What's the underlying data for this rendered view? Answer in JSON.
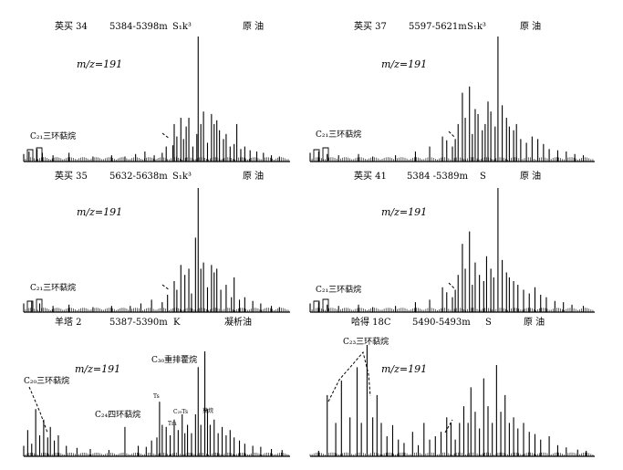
{
  "chart_data": [
    {
      "type": "line",
      "well": "英买 34",
      "depth": "5384-5398m",
      "formation": "S₁k³",
      "sample": "原 油",
      "mz": "m/z=191",
      "annotations": [
        {
          "label": "C₂₁三环萜烷"
        }
      ],
      "peaks": [
        [
          0.0,
          0.06
        ],
        [
          0.02,
          0.08
        ],
        [
          0.05,
          0.1
        ],
        [
          0.07,
          0.07
        ],
        [
          0.11,
          0.05
        ],
        [
          0.17,
          0.07
        ],
        [
          0.26,
          0.04
        ],
        [
          0.33,
          0.05
        ],
        [
          0.38,
          0.04
        ],
        [
          0.42,
          0.06
        ],
        [
          0.455,
          0.08
        ],
        [
          0.49,
          0.05
        ],
        [
          0.52,
          0.07
        ],
        [
          0.535,
          0.12
        ],
        [
          0.56,
          0.13
        ],
        [
          0.565,
          0.3
        ],
        [
          0.575,
          0.2
        ],
        [
          0.59,
          0.35
        ],
        [
          0.6,
          0.18
        ],
        [
          0.61,
          0.28
        ],
        [
          0.62,
          0.35
        ],
        [
          0.635,
          0.12
        ],
        [
          0.65,
          0.22
        ],
        [
          0.655,
          1.0
        ],
        [
          0.665,
          0.3
        ],
        [
          0.675,
          0.4
        ],
        [
          0.69,
          0.15
        ],
        [
          0.705,
          0.38
        ],
        [
          0.715,
          0.3
        ],
        [
          0.725,
          0.33
        ],
        [
          0.735,
          0.25
        ],
        [
          0.75,
          0.18
        ],
        [
          0.76,
          0.22
        ],
        [
          0.775,
          0.12
        ],
        [
          0.79,
          0.14
        ],
        [
          0.8,
          0.3
        ],
        [
          0.815,
          0.1
        ],
        [
          0.83,
          0.12
        ],
        [
          0.85,
          0.09
        ],
        [
          0.875,
          0.08
        ],
        [
          0.9,
          0.07
        ],
        [
          0.93,
          0.05
        ],
        [
          0.96,
          0.04
        ]
      ]
    },
    {
      "type": "line",
      "well": "英买 37",
      "depth": "5597-5621m",
      "formation": "S₁k³",
      "sample": "原 油",
      "mz": "m/z=191",
      "annotations": [
        {
          "label": "C₂₁三环萜烷"
        }
      ],
      "peaks": [
        [
          0.0,
          0.07
        ],
        [
          0.03,
          0.08
        ],
        [
          0.06,
          0.06
        ],
        [
          0.1,
          0.05
        ],
        [
          0.17,
          0.06
        ],
        [
          0.22,
          0.04
        ],
        [
          0.3,
          0.05
        ],
        [
          0.37,
          0.08
        ],
        [
          0.42,
          0.12
        ],
        [
          0.465,
          0.2
        ],
        [
          0.48,
          0.17
        ],
        [
          0.5,
          0.12
        ],
        [
          0.51,
          0.18
        ],
        [
          0.52,
          0.3
        ],
        [
          0.535,
          0.55
        ],
        [
          0.545,
          0.35
        ],
        [
          0.56,
          0.6
        ],
        [
          0.57,
          0.22
        ],
        [
          0.58,
          0.42
        ],
        [
          0.59,
          0.38
        ],
        [
          0.605,
          0.25
        ],
        [
          0.615,
          0.3
        ],
        [
          0.625,
          0.48
        ],
        [
          0.635,
          0.4
        ],
        [
          0.65,
          0.28
        ],
        [
          0.66,
          1.0
        ],
        [
          0.675,
          0.45
        ],
        [
          0.69,
          0.35
        ],
        [
          0.7,
          0.28
        ],
        [
          0.715,
          0.25
        ],
        [
          0.725,
          0.3
        ],
        [
          0.74,
          0.18
        ],
        [
          0.76,
          0.15
        ],
        [
          0.78,
          0.2
        ],
        [
          0.8,
          0.18
        ],
        [
          0.82,
          0.14
        ],
        [
          0.84,
          0.1
        ],
        [
          0.87,
          0.09
        ],
        [
          0.9,
          0.08
        ],
        [
          0.93,
          0.06
        ],
        [
          0.96,
          0.05
        ]
      ]
    },
    {
      "type": "line",
      "well": "英买 35",
      "depth": "5632-5638m",
      "formation": "S₁k³",
      "sample": "原 油",
      "mz": "m/z=191",
      "annotations": [
        {
          "label": "C₂₁三环萜烷"
        }
      ],
      "peaks": [
        [
          0.0,
          0.07
        ],
        [
          0.03,
          0.09
        ],
        [
          0.06,
          0.07
        ],
        [
          0.11,
          0.05
        ],
        [
          0.17,
          0.06
        ],
        [
          0.26,
          0.04
        ],
        [
          0.33,
          0.05
        ],
        [
          0.4,
          0.05
        ],
        [
          0.44,
          0.07
        ],
        [
          0.48,
          0.1
        ],
        [
          0.52,
          0.08
        ],
        [
          0.54,
          0.14
        ],
        [
          0.565,
          0.25
        ],
        [
          0.575,
          0.18
        ],
        [
          0.59,
          0.38
        ],
        [
          0.605,
          0.3
        ],
        [
          0.62,
          0.35
        ],
        [
          0.63,
          0.15
        ],
        [
          0.645,
          0.6
        ],
        [
          0.655,
          1.0
        ],
        [
          0.665,
          0.35
        ],
        [
          0.675,
          0.4
        ],
        [
          0.69,
          0.2
        ],
        [
          0.705,
          0.38
        ],
        [
          0.715,
          0.32
        ],
        [
          0.725,
          0.35
        ],
        [
          0.74,
          0.18
        ],
        [
          0.76,
          0.22
        ],
        [
          0.78,
          0.12
        ],
        [
          0.79,
          0.28
        ],
        [
          0.81,
          0.1
        ],
        [
          0.83,
          0.12
        ],
        [
          0.86,
          0.09
        ],
        [
          0.89,
          0.07
        ],
        [
          0.93,
          0.05
        ],
        [
          0.96,
          0.04
        ]
      ]
    },
    {
      "type": "line",
      "well": "英买 41",
      "depth": "5384 -5389m",
      "formation": "S",
      "sample": "原 油",
      "mz": "m/z=191",
      "annotations": [
        {
          "label": "C₂₁三环萜烷"
        }
      ],
      "peaks": [
        [
          0.0,
          0.07
        ],
        [
          0.03,
          0.08
        ],
        [
          0.06,
          0.06
        ],
        [
          0.1,
          0.05
        ],
        [
          0.17,
          0.06
        ],
        [
          0.22,
          0.04
        ],
        [
          0.3,
          0.05
        ],
        [
          0.37,
          0.08
        ],
        [
          0.42,
          0.1
        ],
        [
          0.465,
          0.2
        ],
        [
          0.48,
          0.16
        ],
        [
          0.5,
          0.12
        ],
        [
          0.51,
          0.18
        ],
        [
          0.52,
          0.3
        ],
        [
          0.535,
          0.55
        ],
        [
          0.545,
          0.35
        ],
        [
          0.56,
          0.65
        ],
        [
          0.57,
          0.22
        ],
        [
          0.58,
          0.4
        ],
        [
          0.595,
          0.3
        ],
        [
          0.61,
          0.25
        ],
        [
          0.62,
          0.45
        ],
        [
          0.635,
          0.35
        ],
        [
          0.645,
          0.28
        ],
        [
          0.66,
          1.0
        ],
        [
          0.675,
          0.42
        ],
        [
          0.69,
          0.32
        ],
        [
          0.7,
          0.28
        ],
        [
          0.715,
          0.25
        ],
        [
          0.73,
          0.22
        ],
        [
          0.75,
          0.18
        ],
        [
          0.77,
          0.15
        ],
        [
          0.79,
          0.2
        ],
        [
          0.81,
          0.14
        ],
        [
          0.83,
          0.12
        ],
        [
          0.86,
          0.09
        ],
        [
          0.89,
          0.08
        ],
        [
          0.92,
          0.06
        ],
        [
          0.96,
          0.05
        ]
      ]
    },
    {
      "type": "line",
      "well": "羊塔 2",
      "depth": "5387-5390m",
      "formation": "K",
      "sample": "凝析油",
      "mz": "m/z=191",
      "annotations": [
        {
          "label": "C₂₀三环萜烷"
        },
        {
          "label": "C₂₄四环萜烷"
        },
        {
          "label": "C₃₀重排藿烷"
        },
        {
          "label": "Ts"
        },
        {
          "label": "Tm"
        },
        {
          "label": "C₂₉Ts"
        },
        {
          "label": "莫烷"
        }
      ],
      "peaks": [
        [
          0.0,
          0.1
        ],
        [
          0.015,
          0.25
        ],
        [
          0.03,
          0.12
        ],
        [
          0.045,
          0.45
        ],
        [
          0.06,
          0.2
        ],
        [
          0.075,
          0.35
        ],
        [
          0.09,
          0.18
        ],
        [
          0.1,
          0.28
        ],
        [
          0.115,
          0.15
        ],
        [
          0.13,
          0.2
        ],
        [
          0.16,
          0.1
        ],
        [
          0.2,
          0.08
        ],
        [
          0.25,
          0.07
        ],
        [
          0.32,
          0.06
        ],
        [
          0.38,
          0.28
        ],
        [
          0.43,
          0.1
        ],
        [
          0.46,
          0.09
        ],
        [
          0.48,
          0.15
        ],
        [
          0.5,
          0.18
        ],
        [
          0.51,
          0.52
        ],
        [
          0.52,
          0.3
        ],
        [
          0.535,
          0.28
        ],
        [
          0.55,
          0.2
        ],
        [
          0.565,
          0.35
        ],
        [
          0.58,
          0.25
        ],
        [
          0.595,
          0.4
        ],
        [
          0.605,
          0.22
        ],
        [
          0.615,
          0.3
        ],
        [
          0.63,
          0.22
        ],
        [
          0.645,
          0.4
        ],
        [
          0.655,
          0.85
        ],
        [
          0.665,
          0.3
        ],
        [
          0.68,
          1.0
        ],
        [
          0.69,
          0.45
        ],
        [
          0.7,
          0.3
        ],
        [
          0.715,
          0.35
        ],
        [
          0.73,
          0.22
        ],
        [
          0.745,
          0.28
        ],
        [
          0.76,
          0.2
        ],
        [
          0.775,
          0.25
        ],
        [
          0.79,
          0.18
        ],
        [
          0.81,
          0.15
        ],
        [
          0.83,
          0.12
        ],
        [
          0.86,
          0.1
        ],
        [
          0.89,
          0.09
        ],
        [
          0.93,
          0.07
        ],
        [
          0.97,
          0.06
        ]
      ]
    },
    {
      "type": "line",
      "well": "哈得 18C",
      "depth": "5490-5493m",
      "formation": "S",
      "sample": "原 油",
      "mz": "m/z=191",
      "annotations": [
        {
          "label": "C₂₃三环萜烷"
        }
      ],
      "peaks": [
        [
          0.03,
          0.05
        ],
        [
          0.06,
          0.55
        ],
        [
          0.09,
          0.3
        ],
        [
          0.11,
          0.68
        ],
        [
          0.14,
          0.35
        ],
        [
          0.165,
          0.8
        ],
        [
          0.18,
          0.3
        ],
        [
          0.2,
          1.0
        ],
        [
          0.22,
          0.35
        ],
        [
          0.235,
          0.55
        ],
        [
          0.25,
          0.3
        ],
        [
          0.27,
          0.18
        ],
        [
          0.29,
          0.28
        ],
        [
          0.31,
          0.15
        ],
        [
          0.33,
          0.12
        ],
        [
          0.36,
          0.22
        ],
        [
          0.38,
          0.1
        ],
        [
          0.4,
          0.3
        ],
        [
          0.42,
          0.15
        ],
        [
          0.44,
          0.18
        ],
        [
          0.46,
          0.22
        ],
        [
          0.48,
          0.35
        ],
        [
          0.495,
          0.3
        ],
        [
          0.51,
          0.15
        ],
        [
          0.525,
          0.3
        ],
        [
          0.54,
          0.45
        ],
        [
          0.555,
          0.3
        ],
        [
          0.565,
          0.62
        ],
        [
          0.58,
          0.4
        ],
        [
          0.595,
          0.25
        ],
        [
          0.61,
          0.7
        ],
        [
          0.625,
          0.45
        ],
        [
          0.64,
          0.3
        ],
        [
          0.655,
          0.82
        ],
        [
          0.67,
          0.4
        ],
        [
          0.685,
          0.55
        ],
        [
          0.7,
          0.3
        ],
        [
          0.715,
          0.35
        ],
        [
          0.73,
          0.25
        ],
        [
          0.75,
          0.3
        ],
        [
          0.77,
          0.22
        ],
        [
          0.79,
          0.2
        ],
        [
          0.81,
          0.15
        ],
        [
          0.84,
          0.18
        ],
        [
          0.87,
          0.1
        ],
        [
          0.9,
          0.08
        ],
        [
          0.94,
          0.06
        ],
        [
          0.97,
          0.05
        ]
      ]
    }
  ]
}
